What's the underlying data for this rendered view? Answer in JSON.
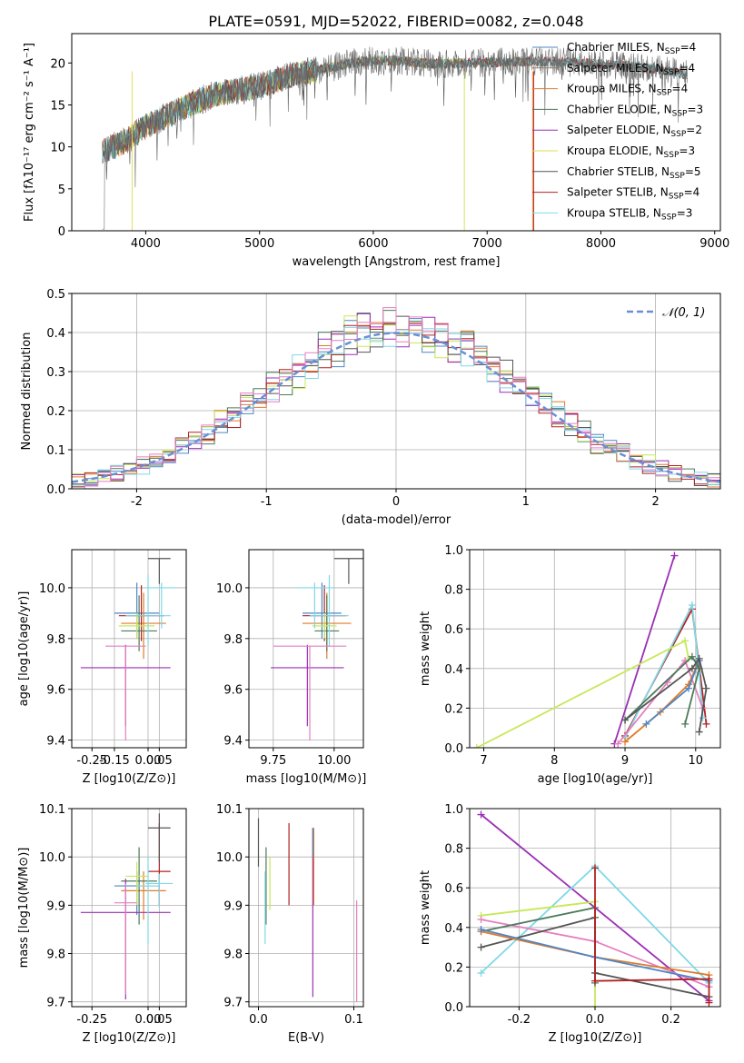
{
  "figure_title": "PLATE=0591, MJD=52022, FIBERID=0082, z=0.048",
  "colors": {
    "Chabrier MILES": "#4f86c6",
    "Salpeter MILES": "#9b7b5a",
    "Kroupa MILES": "#e07b28",
    "Chabrier ELODIE": "#4d7a5a",
    "Salpeter ELODIE": "#9b2fb5",
    "Kroupa ELODIE": "#e0d84a",
    "Chabrier STELIB": "#555555",
    "Salpeter STELIB": "#b22222",
    "Kroupa STELIB": "#7fd8e6",
    "Kroupa ELODIE alt": "#c7e857",
    "Pink": "#e57fc0",
    "Normal": "#6a8fd4"
  },
  "chart_data": [
    {
      "id": "spectrum",
      "type": "line",
      "xlabel": "wavelength [Angstrom, rest frame]",
      "ylabel": "Flux [fλ10⁻¹⁷ erg cm⁻² s⁻¹ A⁻¹]",
      "xlim": [
        3350,
        9050
      ],
      "ylim": [
        0,
        23.5
      ],
      "xticks": [
        4000,
        5000,
        6000,
        7000,
        8000,
        9000
      ],
      "yticks": [
        0,
        5,
        10,
        15,
        20
      ],
      "legend": "top-right",
      "legend_entries": [
        "Chabrier MILES, N_SSP=4",
        "Salpeter MILES, N_SSP=4",
        "Kroupa MILES, N_SSP=4",
        "Chabrier ELODIE, N_SSP=3",
        "Salpeter ELODIE, N_SSP=2",
        "Kroupa ELODIE, N_SSP=3",
        "Chabrier STELIB, N_SSP=5",
        "Salpeter STELIB, N_SSP=4",
        "Kroupa STELIB, N_SSP=3"
      ],
      "continuum": [
        [
          3620,
          9.5
        ],
        [
          3800,
          10.5
        ],
        [
          4000,
          12.5
        ],
        [
          4300,
          14.5
        ],
        [
          4600,
          16.2
        ],
        [
          5000,
          17.2
        ],
        [
          5300,
          18.6
        ],
        [
          5600,
          19.4
        ],
        [
          5900,
          20.2
        ],
        [
          6200,
          20.3
        ],
        [
          6500,
          19.9
        ],
        [
          6800,
          20.0
        ],
        [
          7100,
          20.1
        ],
        [
          7400,
          20.2
        ],
        [
          7700,
          20.1
        ],
        [
          8000,
          19.9
        ],
        [
          8300,
          19.6
        ],
        [
          8600,
          19.0
        ],
        [
          8760,
          18.6
        ]
      ]
    },
    {
      "id": "residuals",
      "type": "histogram",
      "xlabel": "(data-model)/error",
      "ylabel": "Normed distribution",
      "xlim": [
        -2.5,
        2.5
      ],
      "ylim": [
        0,
        0.5
      ],
      "xticks": [
        -2,
        -1,
        0,
        1,
        2
      ],
      "yticks": [
        0,
        0.1,
        0.2,
        0.3,
        0.4,
        0.5
      ],
      "legend": "top-right",
      "legend_entries": [
        "𝒩(0, 1)"
      ]
    },
    {
      "id": "age_vs_Z",
      "type": "scatter",
      "xlabel": "Z [log10(Z/Z⊙)]",
      "ylabel": "age  [log10(age/yr)]",
      "xlim": [
        -0.34,
        0.17
      ],
      "ylim": [
        9.37,
        10.15
      ],
      "xticks": [
        -0.25,
        -0.15,
        0.0,
        0.05
      ],
      "yticks": [
        9.4,
        9.6,
        9.8,
        10.0
      ],
      "series": [
        {
          "x": -0.05,
          "y": 9.9,
          "xerr": 0.1,
          "yerr": [
            0.1,
            0.12
          ]
        },
        {
          "x": -0.02,
          "y": 9.86,
          "xerr": 0.1,
          "yerr": [
            0.14,
            0.12
          ]
        },
        {
          "x": -0.03,
          "y": 9.89,
          "xerr": 0.1,
          "yerr": [
            0.1,
            0.12
          ]
        },
        {
          "x": -0.04,
          "y": 9.83,
          "xerr": 0.08,
          "yerr": [
            0.08,
            0.14
          ]
        },
        {
          "x": -0.1,
          "y": 9.685,
          "xerr": 0.2,
          "yerr": [
            0.23,
            0.09
          ]
        },
        {
          "x": -0.05,
          "y": 9.85,
          "xerr": 0.08,
          "yerr": [
            0.05,
            0.05
          ]
        },
        {
          "x": 0.05,
          "y": 10.115,
          "xerr": 0.05,
          "yerr": [
            0.1,
            0.0
          ]
        },
        {
          "x": 0.0,
          "y": 9.89,
          "xerr": 0.1,
          "yerr": [
            0.12,
            0.16
          ]
        },
        {
          "x": 0.06,
          "y": 10.0,
          "xerr": 0.06,
          "yerr": [
            0.16,
            0.02
          ]
        },
        {
          "x": -0.1,
          "y": 9.77,
          "xerr": 0.09,
          "yerr": [
            0.37,
            0.0
          ]
        }
      ]
    },
    {
      "id": "age_vs_mass",
      "type": "scatter",
      "xlabel": "mass [log10(M/M⊙)]",
      "ylabel": "",
      "xlim": [
        9.65,
        10.12
      ],
      "ylim": [
        9.37,
        10.15
      ],
      "xticks": [
        9.75,
        10.0
      ],
      "yticks": [
        9.4,
        9.6,
        9.8,
        10.0
      ]
    },
    {
      "id": "weight_vs_age",
      "type": "line",
      "xlabel": "age  [log10(age/yr)]",
      "ylabel": "mass weight",
      "xlim": [
        6.8,
        10.35
      ],
      "ylim": [
        0,
        1.0
      ],
      "xticks": [
        7,
        8,
        9,
        10
      ],
      "yticks": [
        0.0,
        0.2,
        0.4,
        0.6,
        0.8,
        1.0
      ],
      "series": [
        {
          "color": "Salpeter ELODIE",
          "points": [
            [
              8.85,
              0.02
            ],
            [
              9.7,
              0.97
            ]
          ]
        },
        {
          "color": "Salpeter STELIB",
          "points": [
            [
              9.0,
              0.06
            ],
            [
              9.95,
              0.7
            ],
            [
              10.15,
              0.12
            ]
          ]
        },
        {
          "color": "Kroupa STELIB",
          "points": [
            [
              9.0,
              0.05
            ],
            [
              9.95,
              0.72
            ],
            [
              10.05,
              0.38
            ],
            [
              10.1,
              0.15
            ]
          ]
        },
        {
          "color": "Kroupa ELODIE alt",
          "points": [
            [
              6.9,
              0.0
            ],
            [
              9.85,
              0.54
            ],
            [
              9.9,
              0.45
            ]
          ]
        },
        {
          "color": "Pink",
          "points": [
            [
              8.9,
              0.02
            ],
            [
              9.6,
              0.33
            ],
            [
              9.85,
              0.44
            ],
            [
              10.1,
              0.2
            ]
          ]
        },
        {
          "color": "Kroupa MILES",
          "points": [
            [
              9.0,
              0.03
            ],
            [
              9.5,
              0.18
            ],
            [
              9.9,
              0.32
            ],
            [
              10.0,
              0.4
            ]
          ]
        },
        {
          "color": "Chabrier MILES",
          "points": [
            [
              9.3,
              0.12
            ],
            [
              9.9,
              0.3
            ],
            [
              10.05,
              0.44
            ]
          ]
        },
        {
          "color": "Chabrier ELODIE",
          "points": [
            [
              9.0,
              0.14
            ],
            [
              9.95,
              0.46
            ],
            [
              10.05,
              0.4
            ],
            [
              9.85,
              0.12
            ]
          ]
        },
        {
          "color": "Chabrier STELIB",
          "points": [
            [
              9.0,
              0.14
            ],
            [
              9.95,
              0.4
            ],
            [
              10.05,
              0.45
            ],
            [
              10.15,
              0.3
            ],
            [
              10.05,
              0.08
            ]
          ]
        }
      ]
    },
    {
      "id": "mass_vs_Z",
      "type": "scatter",
      "xlabel": "Z [log10(Z/Z⊙)]",
      "ylabel": "mass [log10(M/M⊙)]",
      "xlim": [
        -0.34,
        0.17
      ],
      "ylim": [
        9.69,
        10.1
      ],
      "xticks": [
        -0.25,
        0.0,
        0.05
      ],
      "yticks": [
        9.7,
        9.8,
        9.9,
        10.0,
        10.1
      ]
    },
    {
      "id": "mass_vs_ebv",
      "type": "scatter",
      "xlabel": "E(B-V)",
      "ylabel": "",
      "xlim": [
        -0.01,
        0.11
      ],
      "ylim": [
        9.69,
        10.1
      ],
      "xticks": [
        0.0,
        0.1
      ],
      "yticks": [
        9.7,
        9.8,
        9.9,
        10.0,
        10.1
      ]
    },
    {
      "id": "weight_vs_Z",
      "type": "line",
      "xlabel": "Z [log10(Z/Z⊙)]",
      "ylabel": "mass weight",
      "xlim": [
        -0.33,
        0.33
      ],
      "ylim": [
        0,
        1.0
      ],
      "xticks": [
        -0.2,
        0.0,
        0.2
      ],
      "yticks": [
        0.0,
        0.2,
        0.4,
        0.6,
        0.8,
        1.0
      ],
      "series": [
        {
          "color": "Salpeter ELODIE",
          "points": [
            [
              -0.3,
              0.97
            ],
            [
              0.3,
              0.03
            ]
          ]
        },
        {
          "color": "Kroupa STELIB",
          "points": [
            [
              -0.3,
              0.17
            ],
            [
              0.0,
              0.71
            ],
            [
              0.3,
              0.12
            ]
          ]
        },
        {
          "color": "Kroupa ELODIE alt",
          "points": [
            [
              -0.3,
              0.46
            ],
            [
              0.0,
              0.53
            ],
            [
              0.0,
              0.0
            ]
          ]
        },
        {
          "color": "Pink",
          "points": [
            [
              -0.3,
              0.44
            ],
            [
              0.0,
              0.33
            ],
            [
              0.3,
              0.1
            ]
          ]
        },
        {
          "color": "Chabrier ELODIE",
          "points": [
            [
              -0.3,
              0.38
            ],
            [
              0.0,
              0.5
            ],
            [
              0.0,
              0.12
            ]
          ]
        },
        {
          "color": "Chabrier STELIB",
          "points": [
            [
              -0.3,
              0.3
            ],
            [
              0.0,
              0.45
            ],
            [
              0.0,
              0.17
            ],
            [
              0.3,
              0.05
            ]
          ]
        },
        {
          "color": "Kroupa MILES",
          "points": [
            [
              -0.3,
              0.38
            ],
            [
              0.0,
              0.25
            ],
            [
              0.3,
              0.16
            ]
          ]
        },
        {
          "color": "Chabrier MILES",
          "points": [
            [
              -0.3,
              0.39
            ],
            [
              0.0,
              0.25
            ],
            [
              0.3,
              0.13
            ]
          ]
        },
        {
          "color": "Salpeter STELIB",
          "points": [
            [
              0.0,
              0.7
            ],
            [
              0.0,
              0.13
            ],
            [
              0.3,
              0.14
            ],
            [
              0.3,
              0.02
            ]
          ]
        }
      ]
    }
  ]
}
